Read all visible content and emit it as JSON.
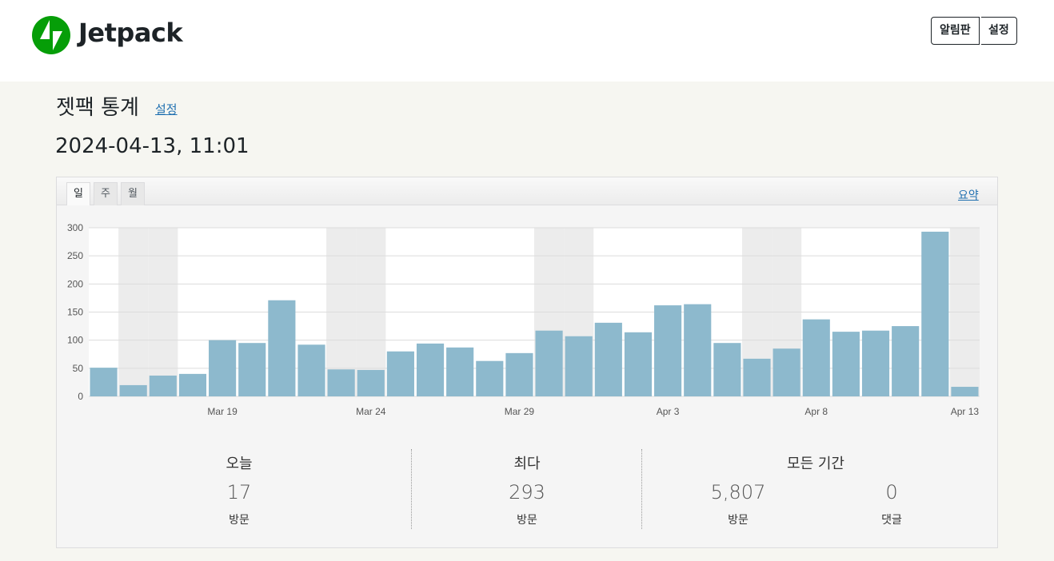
{
  "header": {
    "logo": "Jetpack",
    "buttons": [
      "알림판",
      "설정"
    ]
  },
  "page": {
    "title": "젯팩 통계",
    "title_link": "설정",
    "datetime": "2024-04-13, 11:01"
  },
  "tabs": [
    "일",
    "주",
    "월"
  ],
  "summary_link": "요약",
  "chart_data": {
    "type": "bar",
    "categories": [
      null,
      null,
      null,
      null,
      "Mar 19",
      null,
      null,
      null,
      null,
      "Mar 24",
      null,
      null,
      null,
      null,
      "Mar 29",
      null,
      null,
      null,
      null,
      "Apr 3",
      null,
      null,
      null,
      null,
      "Apr 8",
      null,
      null,
      null,
      null,
      "Apr 13"
    ],
    "values": [
      51,
      20,
      37,
      40,
      100,
      95,
      171,
      92,
      48,
      47,
      80,
      94,
      87,
      63,
      77,
      117,
      107,
      131,
      114,
      162,
      164,
      95,
      67,
      85,
      137,
      115,
      117,
      125,
      293,
      17
    ],
    "color": "#8db9cd",
    "ylim": [
      0,
      300
    ],
    "yticks": [
      0,
      50,
      100,
      150,
      200,
      250,
      300
    ],
    "grid": true
  },
  "stats": [
    {
      "heading": "오늘",
      "items": [
        {
          "value": "17",
          "label": "방문"
        }
      ]
    },
    {
      "heading": "최다",
      "items": [
        {
          "value": "293",
          "label": "방문"
        }
      ]
    },
    {
      "heading": "모든 기간",
      "items": [
        {
          "value": "5,807",
          "label": "방문"
        },
        {
          "value": "0",
          "label": "댓글"
        }
      ]
    }
  ]
}
